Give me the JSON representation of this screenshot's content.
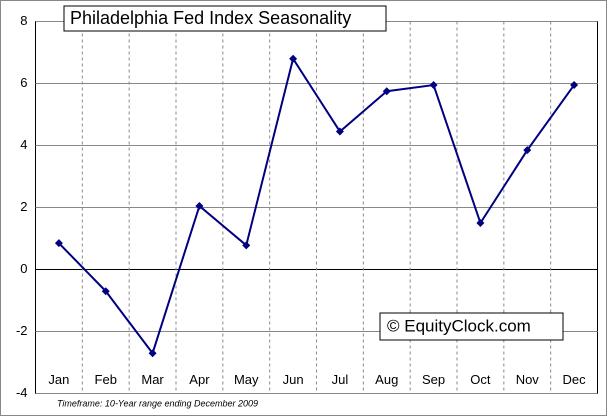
{
  "chart_data": {
    "type": "line",
    "title": "Philadelphia Fed Index Seasonality",
    "categories": [
      "Jan",
      "Feb",
      "Mar",
      "Apr",
      "May",
      "Jun",
      "Jul",
      "Aug",
      "Sep",
      "Oct",
      "Nov",
      "Dec"
    ],
    "series": [
      {
        "name": "Philadelphia Fed Index",
        "color": "#000080",
        "values": [
          0.85,
          -0.7,
          -2.7,
          2.05,
          0.78,
          6.8,
          4.45,
          5.75,
          5.95,
          1.5,
          3.85,
          5.95
        ]
      }
    ],
    "ylim": [
      -4,
      8
    ],
    "yticks": [
      -4,
      -2,
      0,
      2,
      4,
      6,
      8
    ],
    "grid": true,
    "annotation": "© EquityClock.com",
    "footnote": "Timeframe: 10-Year range ending December 2009"
  }
}
